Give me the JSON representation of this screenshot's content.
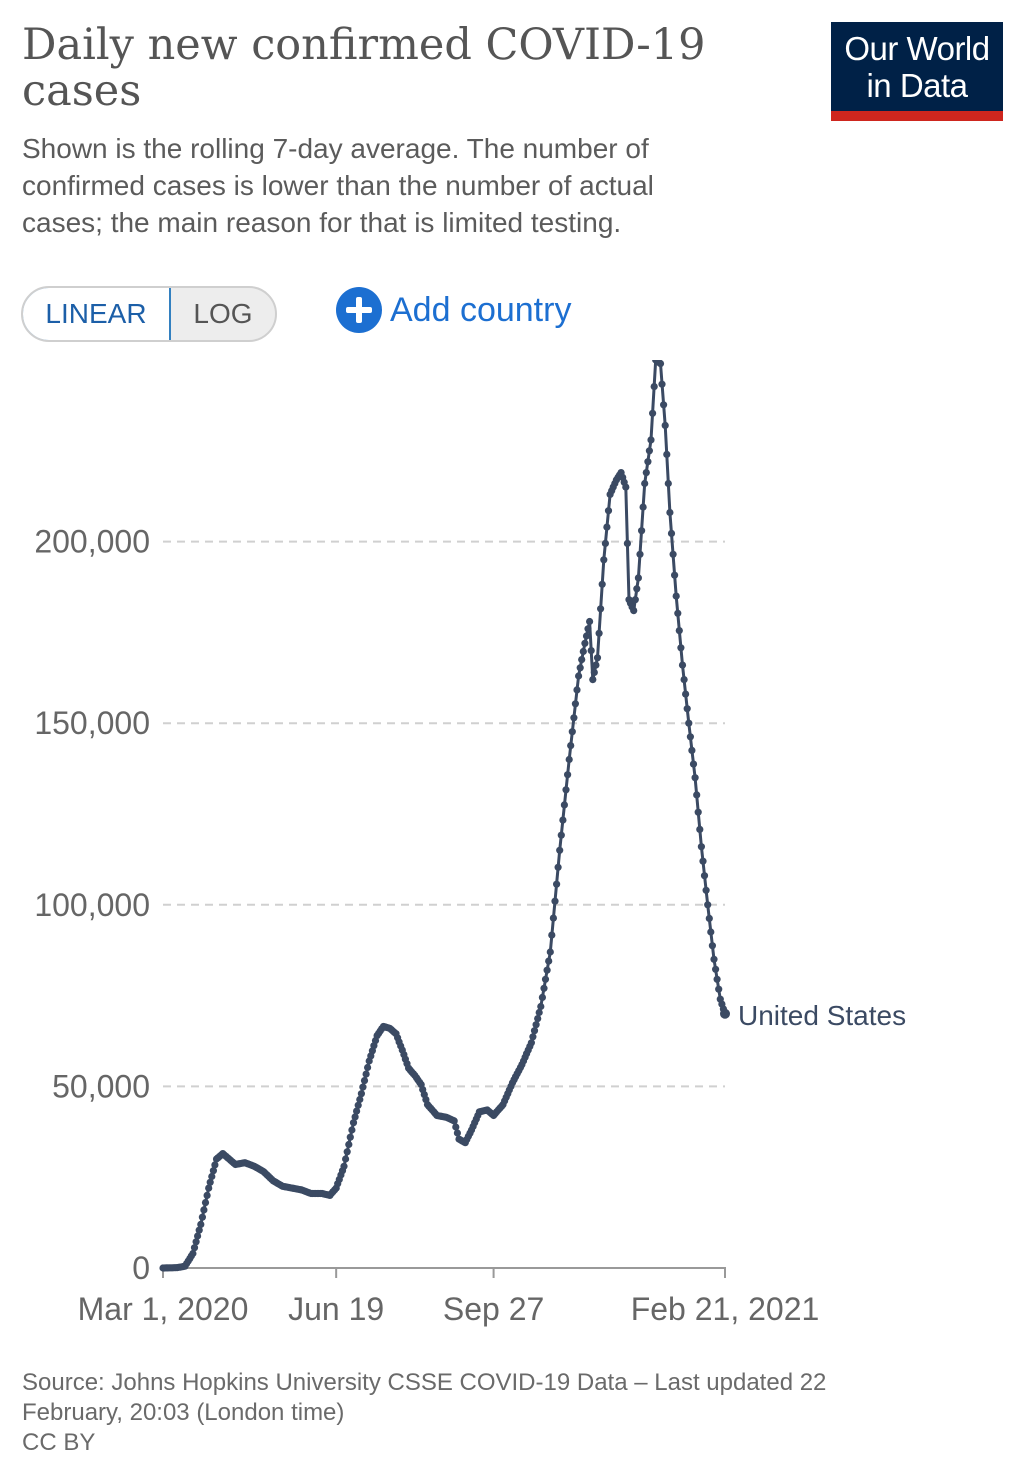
{
  "header": {
    "title": "Daily new confirmed COVID-19 cases",
    "subtitle": "Shown is the rolling 7-day average. The number of confirmed cases is lower than the number of actual cases; the main reason for that is limited testing.",
    "logo_line1": "Our World",
    "logo_line2": "in Data"
  },
  "controls": {
    "linear_label": "LINEAR",
    "log_label": "LOG",
    "add_country_label": "Add country"
  },
  "footer": {
    "source": "Source: Johns Hopkins University CSSE COVID-19 Data – Last updated 22 February, 20:03 (London time)",
    "license": "CC BY"
  },
  "colors": {
    "line": "#3b4a63",
    "accent": "#1c6fd1",
    "logo_bg": "#002147",
    "logo_bar": "#ce261e"
  },
  "chart_data": {
    "type": "line",
    "title": "Daily new confirmed COVID-19 cases",
    "xlabel": "",
    "ylabel": "",
    "x_range": [
      "2020-03-01",
      "2021-02-21"
    ],
    "ylim": [
      0,
      250000
    ],
    "yticks": [
      0,
      50000,
      100000,
      150000,
      200000
    ],
    "ytick_labels": [
      "0",
      "50,000",
      "100,000",
      "150,000",
      "200,000"
    ],
    "xticks": [
      "2020-03-01",
      "2020-06-19",
      "2020-09-27",
      "2021-02-21"
    ],
    "xtick_labels": [
      "Mar 1, 2020",
      "Jun 19",
      "Sep 27",
      "Feb 21, 2021"
    ],
    "grid": "horizontal-dashed",
    "legend": "end-of-line label",
    "series": [
      {
        "name": "United States",
        "points": [
          [
            "2020-03-01",
            0
          ],
          [
            "2020-03-10",
            100
          ],
          [
            "2020-03-15",
            500
          ],
          [
            "2020-03-20",
            4000
          ],
          [
            "2020-03-25",
            12000
          ],
          [
            "2020-03-30",
            22000
          ],
          [
            "2020-04-04",
            30000
          ],
          [
            "2020-04-08",
            31500
          ],
          [
            "2020-04-12",
            30000
          ],
          [
            "2020-04-16",
            28500
          ],
          [
            "2020-04-22",
            29000
          ],
          [
            "2020-04-28",
            28000
          ],
          [
            "2020-05-04",
            26500
          ],
          [
            "2020-05-10",
            24000
          ],
          [
            "2020-05-16",
            22500
          ],
          [
            "2020-05-22",
            22000
          ],
          [
            "2020-05-28",
            21500
          ],
          [
            "2020-06-03",
            20500
          ],
          [
            "2020-06-10",
            20500
          ],
          [
            "2020-06-15",
            20000
          ],
          [
            "2020-06-19",
            22000
          ],
          [
            "2020-06-24",
            28000
          ],
          [
            "2020-06-30",
            40000
          ],
          [
            "2020-07-05",
            48000
          ],
          [
            "2020-07-10",
            57000
          ],
          [
            "2020-07-15",
            64000
          ],
          [
            "2020-07-19",
            66500
          ],
          [
            "2020-07-23",
            66000
          ],
          [
            "2020-07-27",
            64500
          ],
          [
            "2020-07-31",
            60000
          ],
          [
            "2020-08-04",
            55000
          ],
          [
            "2020-08-08",
            53000
          ],
          [
            "2020-08-12",
            50500
          ],
          [
            "2020-08-16",
            45000
          ],
          [
            "2020-08-22",
            42000
          ],
          [
            "2020-08-28",
            41500
          ],
          [
            "2020-09-02",
            40500
          ],
          [
            "2020-09-05",
            35500
          ],
          [
            "2020-09-09",
            34500
          ],
          [
            "2020-09-13",
            38000
          ],
          [
            "2020-09-18",
            43000
          ],
          [
            "2020-09-23",
            43500
          ],
          [
            "2020-09-27",
            42000
          ],
          [
            "2020-10-03",
            45000
          ],
          [
            "2020-10-09",
            51000
          ],
          [
            "2020-10-15",
            56000
          ],
          [
            "2020-10-21",
            62000
          ],
          [
            "2020-10-27",
            72000
          ],
          [
            "2020-11-02",
            87000
          ],
          [
            "2020-11-08",
            115000
          ],
          [
            "2020-11-14",
            140000
          ],
          [
            "2020-11-20",
            163000
          ],
          [
            "2020-11-24",
            172000
          ],
          [
            "2020-11-27",
            178000
          ],
          [
            "2020-11-29",
            162000
          ],
          [
            "2020-12-02",
            168000
          ],
          [
            "2020-12-06",
            195000
          ],
          [
            "2020-12-10",
            213000
          ],
          [
            "2020-12-14",
            217000
          ],
          [
            "2020-12-17",
            219000
          ],
          [
            "2020-12-20",
            215000
          ],
          [
            "2020-12-22",
            184000
          ],
          [
            "2020-12-25",
            181000
          ],
          [
            "2020-12-28",
            190000
          ],
          [
            "2021-01-01",
            216000
          ],
          [
            "2021-01-05",
            228000
          ],
          [
            "2021-01-08",
            250000
          ],
          [
            "2021-01-11",
            249000
          ],
          [
            "2021-01-14",
            232000
          ],
          [
            "2021-01-17",
            208000
          ],
          [
            "2021-01-21",
            185000
          ],
          [
            "2021-01-25",
            166000
          ],
          [
            "2021-01-29",
            150000
          ],
          [
            "2021-02-02",
            135000
          ],
          [
            "2021-02-06",
            116000
          ],
          [
            "2021-02-10",
            100000
          ],
          [
            "2021-02-14",
            85000
          ],
          [
            "2021-02-18",
            74000
          ],
          [
            "2021-02-21",
            70000
          ]
        ]
      }
    ]
  }
}
